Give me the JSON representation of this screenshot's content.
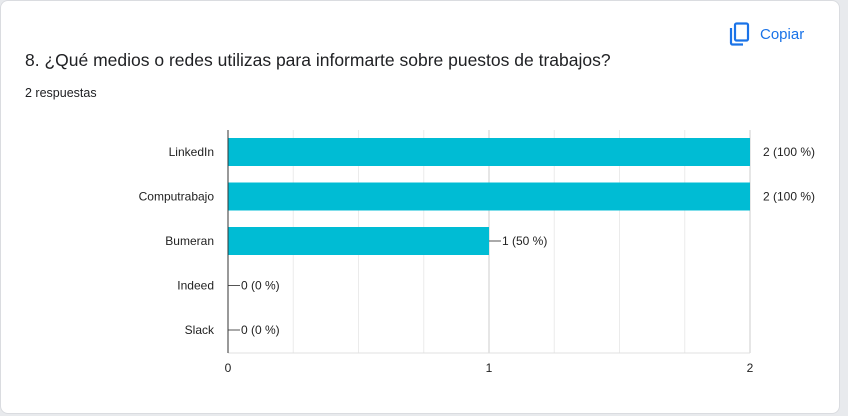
{
  "header": {
    "copy_label": "Copiar",
    "copy_icon": "content-copy-icon",
    "accent_color": "#1a73e8"
  },
  "question": {
    "title": "8. ¿Qué medios o redes utilizas para informarte sobre puestos de trabajos?",
    "response_count": "2 respuestas"
  },
  "chart_data": {
    "type": "bar",
    "orientation": "horizontal",
    "categories": [
      "LinkedIn",
      "Computrabajo",
      "Bumeran",
      "Indeed",
      "Slack"
    ],
    "values": [
      2,
      2,
      1,
      0,
      0
    ],
    "value_labels": [
      "2 (100 %)",
      "2 (100 %)",
      "1 (50 %)",
      "0 (0 %)",
      "0 (0 %)"
    ],
    "x_ticks": [
      "0",
      "1",
      "2"
    ],
    "xlim": [
      0,
      2
    ],
    "bar_color": "#00bcd4",
    "grid": true
  }
}
